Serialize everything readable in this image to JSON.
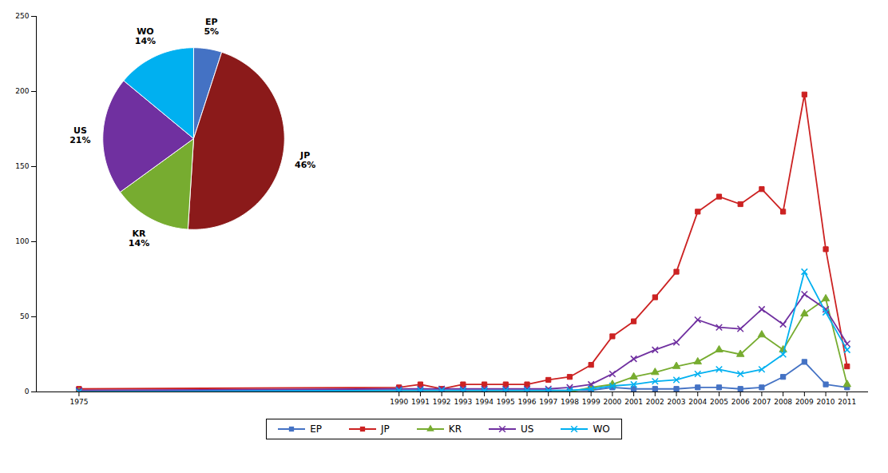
{
  "chart_data": [
    {
      "type": "line",
      "x": [
        1975,
        1990,
        1991,
        1992,
        1993,
        1994,
        1995,
        1996,
        1997,
        1998,
        1999,
        2000,
        2001,
        2002,
        2003,
        2004,
        2005,
        2006,
        2007,
        2008,
        2009,
        2010,
        2011
      ],
      "xlim": [
        1973,
        2012
      ],
      "xticks": [
        1975,
        1990,
        1991,
        1992,
        1993,
        1994,
        1995,
        1996,
        1997,
        1998,
        1999,
        2000,
        2001,
        2002,
        2003,
        2004,
        2005,
        2006,
        2007,
        2008,
        2009,
        2010,
        2011
      ],
      "ylim": [
        0,
        250
      ],
      "yticks": [
        0,
        50,
        100,
        150,
        200,
        250
      ],
      "grid": false,
      "legend": "bottom",
      "series": [
        {
          "name": "EP",
          "color": "#4472c4",
          "marker": "square",
          "values": [
            1,
            1,
            1,
            1,
            1,
            1,
            1,
            1,
            1,
            1,
            1,
            3,
            2,
            2,
            2,
            3,
            3,
            2,
            3,
            10,
            20,
            5,
            3
          ]
        },
        {
          "name": "JP",
          "color": "#cc2222",
          "marker": "square",
          "values": [
            2,
            3,
            5,
            2,
            5,
            5,
            5,
            5,
            8,
            10,
            18,
            37,
            47,
            63,
            80,
            120,
            130,
            125,
            135,
            120,
            198,
            95,
            17
          ]
        },
        {
          "name": "KR",
          "color": "#77ac30",
          "marker": "triangle",
          "values": [
            0,
            0,
            0,
            0,
            0,
            0,
            0,
            0,
            0,
            0,
            3,
            5,
            10,
            13,
            17,
            20,
            28,
            25,
            38,
            28,
            52,
            62,
            5
          ]
        },
        {
          "name": "US",
          "color": "#7030a0",
          "marker": "x",
          "values": [
            1,
            2,
            2,
            2,
            2,
            2,
            2,
            2,
            2,
            3,
            5,
            12,
            22,
            28,
            33,
            48,
            43,
            42,
            55,
            45,
            65,
            55,
            32
          ]
        },
        {
          "name": "WO",
          "color": "#00b0f0",
          "marker": "x",
          "values": [
            0,
            1,
            1,
            1,
            1,
            1,
            1,
            1,
            1,
            1,
            2,
            4,
            5,
            7,
            8,
            12,
            15,
            12,
            15,
            25,
            80,
            53,
            28
          ]
        }
      ]
    },
    {
      "type": "pie",
      "categories": [
        "EP",
        "JP",
        "KR",
        "US",
        "WO"
      ],
      "values": [
        5,
        46,
        14,
        21,
        14
      ],
      "value_labels": [
        "5%",
        "46%",
        "14%",
        "21%",
        "14%"
      ],
      "colors": [
        "#4472c4",
        "#8b1a1a",
        "#77ac30",
        "#7030a0",
        "#00b0f0"
      ],
      "data_labels": true
    }
  ]
}
